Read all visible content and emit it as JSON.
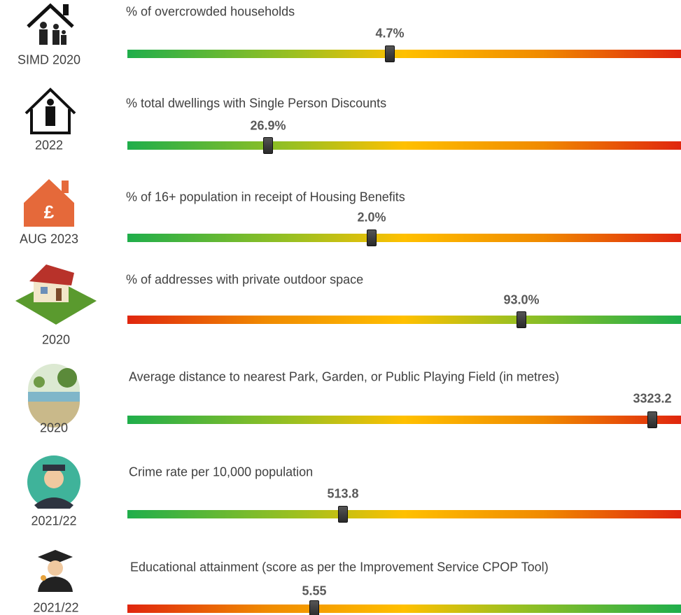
{
  "rows": [
    {
      "caption": "SIMD 2020",
      "title": "% of overcrowded households",
      "value": "4.7%"
    },
    {
      "caption": "2022",
      "title": "% total dwellings with Single Person Discounts",
      "value": "26.9%"
    },
    {
      "caption": "AUG 2023",
      "title": "% of 16+ population in receipt of Housing Benefits",
      "value": "2.0%"
    },
    {
      "caption": "2020",
      "title": "% of addresses with private outdoor space",
      "value": "93.0%"
    },
    {
      "caption": "2020",
      "title": "Average distance to nearest Park, Garden, or Public Playing Field (in metres)",
      "value": "3323.2"
    },
    {
      "caption": "2021/22",
      "title": "Crime rate per 10,000 population",
      "value": "513.8"
    },
    {
      "caption": "2021/22",
      "title": "Educational attainment (score as per the Improvement Service CPOP Tool)",
      "value": "5.55"
    }
  ]
}
